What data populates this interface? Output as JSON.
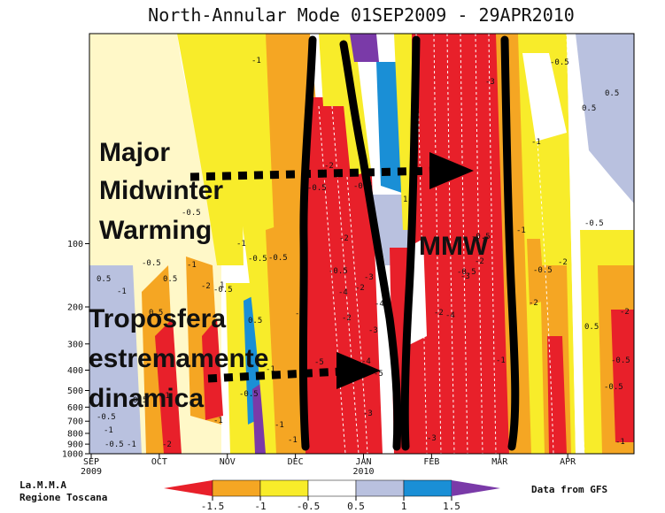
{
  "chart_data": {
    "type": "heatmap",
    "title": "North-Annular Mode 01SEP2009 - 29APR2010",
    "x_axis": {
      "tick_labels": [
        "SEP",
        "OCT",
        "NOV",
        "DEC",
        "JAN",
        "FEB",
        "MAR",
        "APR"
      ],
      "year_labels": [
        "2009",
        "2010"
      ]
    },
    "y_axis": {
      "scale": "log (pressure, hPa)",
      "tick_labels": [
        "100",
        "200",
        "300",
        "400",
        "500",
        "600",
        "700",
        "800",
        "900",
        "1000"
      ]
    },
    "colorbar": {
      "levels": [
        "-1.5",
        "-1",
        "-0.5",
        "0.5",
        "1",
        "1.5"
      ],
      "colors": [
        "#e8202a",
        "#f5a623",
        "#f8ec2a",
        "#ffffff",
        "#b9c1df",
        "#1a8fd6",
        "#7a3aa8"
      ]
    },
    "annotations": [
      {
        "text": "Major",
        "color": "#000000"
      },
      {
        "text": "Midwinter",
        "color": "#000000"
      },
      {
        "text": "Warming",
        "color": "#000000"
      },
      {
        "text": "MMW",
        "color": "#000000"
      },
      {
        "text": "Troposfera",
        "color": "#000000"
      },
      {
        "text": "estremamente",
        "color": "#000000"
      },
      {
        "text": "dinamica",
        "color": "#000000"
      }
    ],
    "contour_labels": [
      "-1",
      "-0.5",
      "-0.5",
      "0.5",
      "-2",
      "-0.5",
      "1",
      "-3",
      "-0.5",
      "0.5",
      "-1",
      "-0.5",
      "0.5",
      "-1",
      "-1",
      "-0.5",
      "1",
      "-0.5",
      "-2",
      "-0.5",
      "0.5",
      "-1",
      "-4",
      "-2",
      "-3",
      "-2",
      "-4",
      "-2",
      "-4",
      "-3",
      "-2",
      "-0.5",
      "-0.5",
      "-2",
      "-1",
      "0.5",
      "-1",
      "-0.5",
      "-5",
      "-3",
      "-2",
      "-1",
      "-2",
      "-0.5",
      "-0.5",
      "-1",
      "-0.5",
      "-1",
      "-1",
      "-1",
      "-2",
      "-1",
      "-1",
      "-0.5",
      "-0.5",
      "0.5",
      "0.5",
      "-5",
      "-1",
      "0.5",
      "-3",
      "-4",
      "-3",
      "-0.5",
      "-1",
      "-0.5",
      "-2"
    ],
    "grid": false,
    "legend_position": "bottom"
  },
  "footer": {
    "left_line1": "La.M.M.A",
    "left_line2": "Regione Toscana",
    "right": "Data from GFS"
  }
}
